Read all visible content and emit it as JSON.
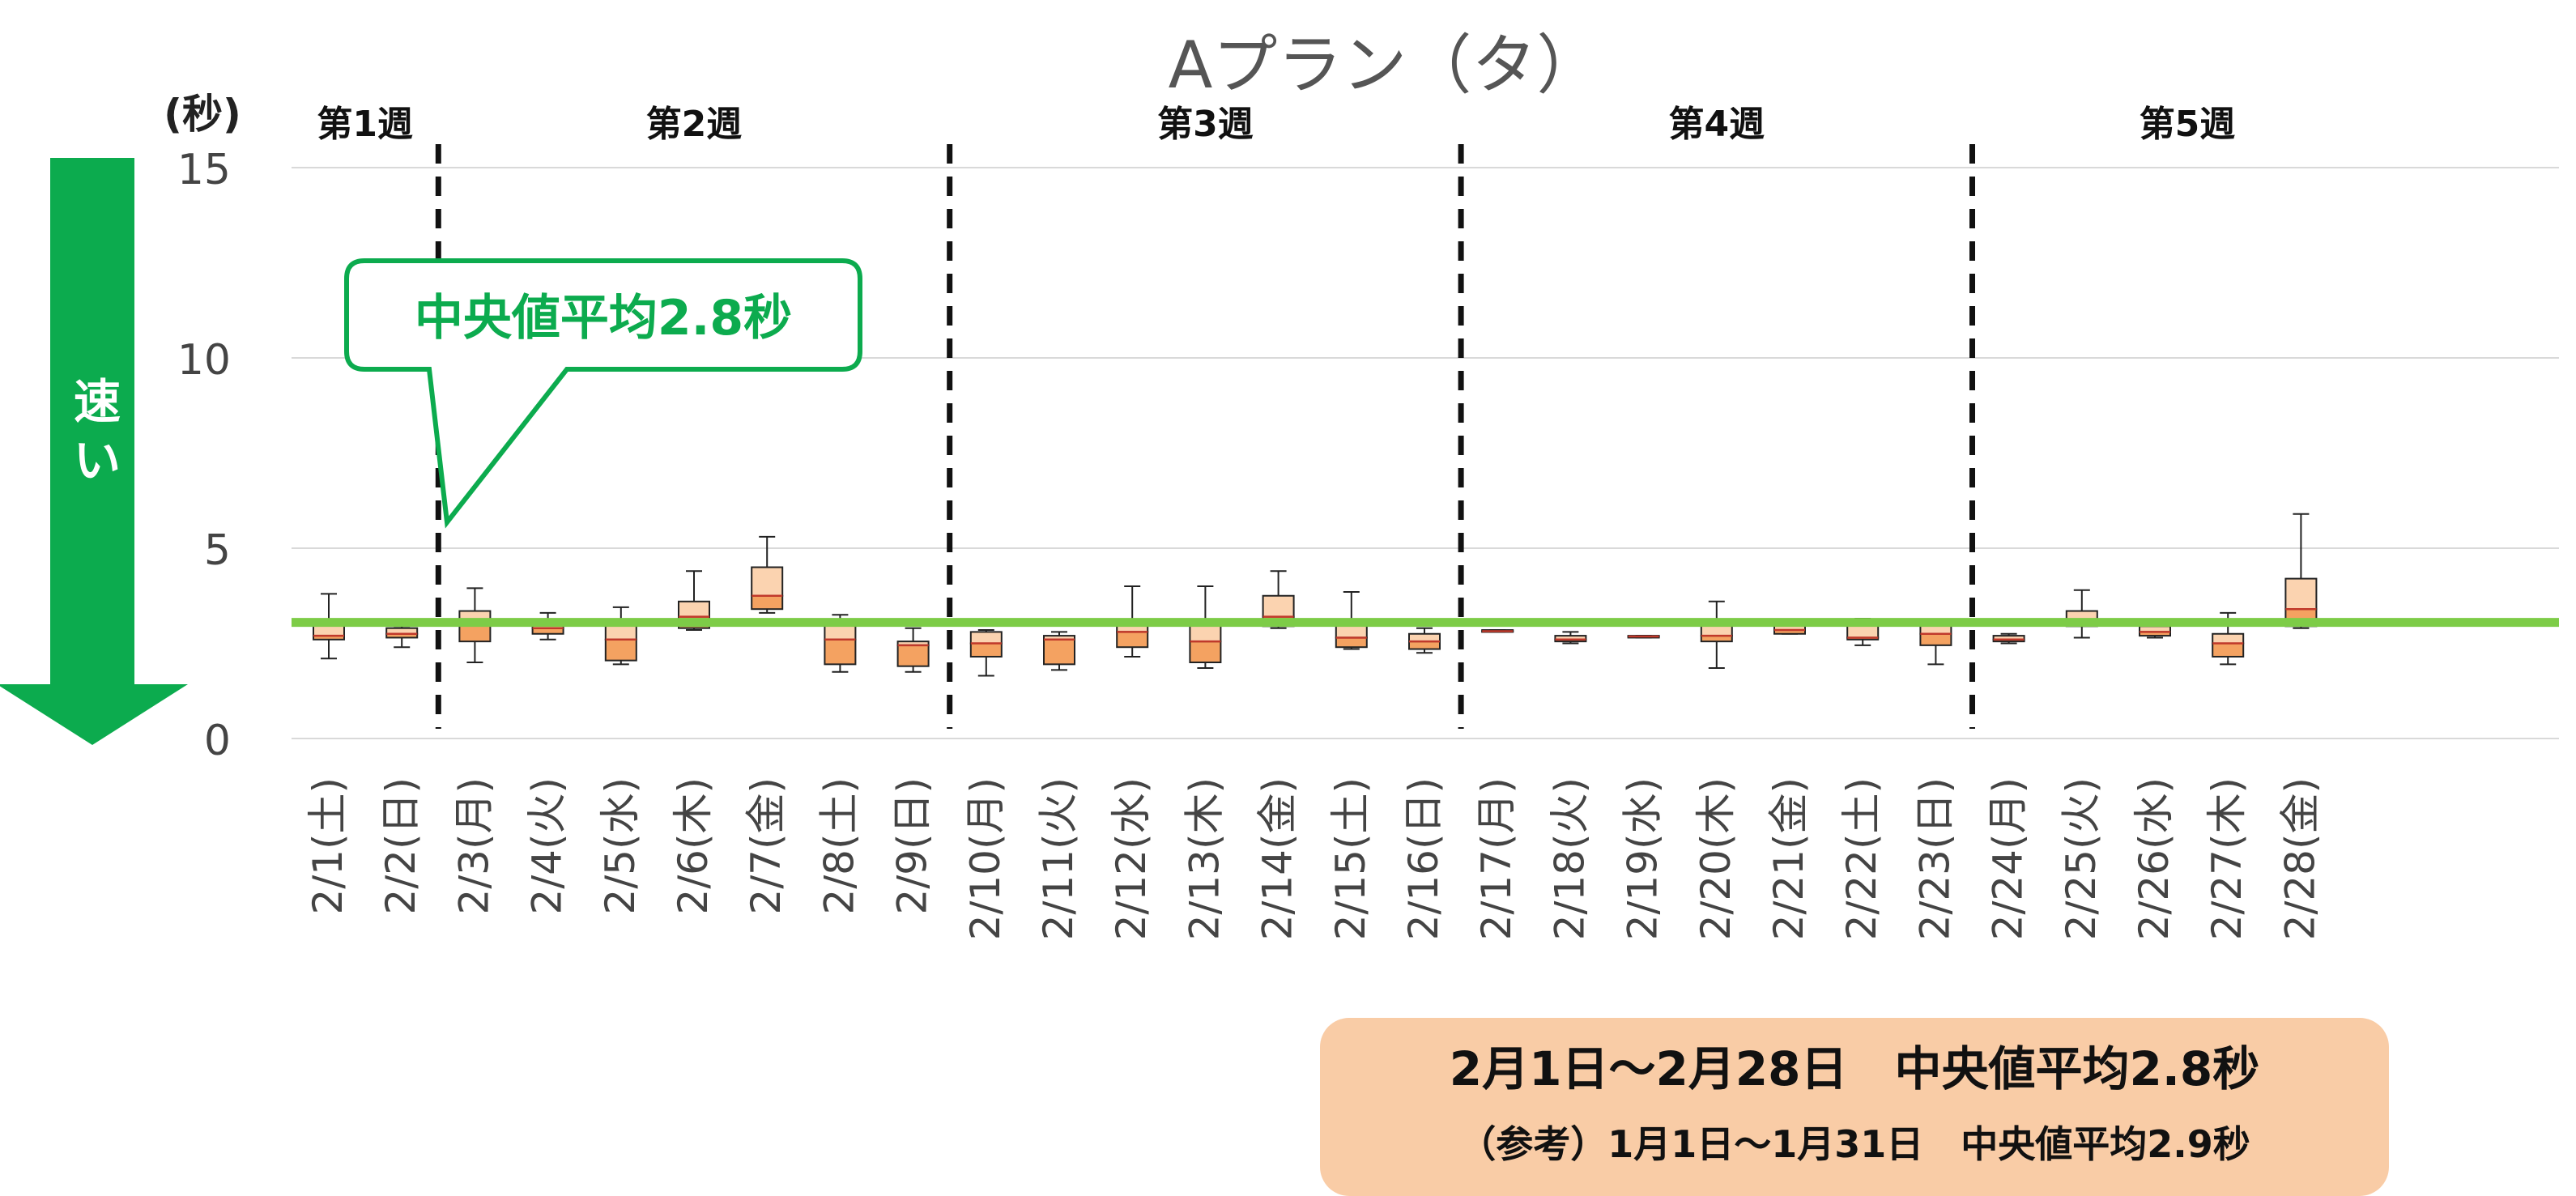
{
  "chart_data": {
    "type": "box",
    "title": "Aプラン（タ）",
    "unit_label": "(秒)",
    "ylim": [
      0,
      15
    ],
    "yticks": [
      0,
      5,
      10,
      15
    ],
    "grid": true,
    "speed_label": [
      "速",
      "い"
    ],
    "weeks": [
      {
        "label": "第1週",
        "start": 0,
        "end": 1
      },
      {
        "label": "第2週",
        "start": 2,
        "end": 8
      },
      {
        "label": "第3週",
        "start": 9,
        "end": 15
      },
      {
        "label": "第4週",
        "start": 16,
        "end": 22
      },
      {
        "label": "第5週",
        "start": 23,
        "end": 27
      }
    ],
    "categories": [
      "2/1(土)",
      "2/2(日)",
      "2/3(月)",
      "2/4(火)",
      "2/5(水)",
      "2/6(木)",
      "2/7(金)",
      "2/8(土)",
      "2/9(日)",
      "2/10(月)",
      "2/11(火)",
      "2/12(水)",
      "2/13(木)",
      "2/14(金)",
      "2/15(土)",
      "2/16(日)",
      "2/17(月)",
      "2/18(火)",
      "2/19(水)",
      "2/20(木)",
      "2/21(金)",
      "2/22(土)",
      "2/23(日)",
      "2/24(月)",
      "2/25(火)",
      "2/26(水)",
      "2/27(木)",
      "2/28(金)"
    ],
    "boxes": [
      {
        "min": 2.1,
        "q1": 2.6,
        "median": 2.7,
        "q3": 3.1,
        "max": 3.8
      },
      {
        "min": 2.4,
        "q1": 2.65,
        "median": 2.75,
        "q3": 2.9,
        "max": 2.95
      },
      {
        "min": 2.0,
        "q1": 2.55,
        "median": 3.1,
        "q3": 3.35,
        "max": 3.95
      },
      {
        "min": 2.6,
        "q1": 2.75,
        "median": 2.9,
        "q3": 3.1,
        "max": 3.3
      },
      {
        "min": 1.95,
        "q1": 2.05,
        "median": 2.6,
        "q3": 3.1,
        "max": 3.45
      },
      {
        "min": 2.85,
        "q1": 2.9,
        "median": 3.2,
        "q3": 3.6,
        "max": 4.4
      },
      {
        "min": 3.3,
        "q1": 3.4,
        "median": 3.75,
        "q3": 4.5,
        "max": 5.3
      },
      {
        "min": 1.75,
        "q1": 1.95,
        "median": 2.6,
        "q3": 3.05,
        "max": 3.25
      },
      {
        "min": 1.75,
        "q1": 1.9,
        "median": 2.45,
        "q3": 2.55,
        "max": 2.9
      },
      {
        "min": 1.65,
        "q1": 2.15,
        "median": 2.5,
        "q3": 2.8,
        "max": 2.85
      },
      {
        "min": 1.8,
        "q1": 1.95,
        "median": 2.6,
        "q3": 2.7,
        "max": 2.8
      },
      {
        "min": 2.15,
        "q1": 2.4,
        "median": 2.8,
        "q3": 3.1,
        "max": 4.0
      },
      {
        "min": 1.85,
        "q1": 2.0,
        "median": 2.55,
        "q3": 3.05,
        "max": 4.0
      },
      {
        "min": 2.9,
        "q1": 2.95,
        "median": 3.2,
        "q3": 3.75,
        "max": 4.4
      },
      {
        "min": 2.35,
        "q1": 2.4,
        "median": 2.65,
        "q3": 3.1,
        "max": 3.85
      },
      {
        "min": 2.25,
        "q1": 2.35,
        "median": 2.55,
        "q3": 2.75,
        "max": 2.9
      },
      {
        "min": 2.8,
        "q1": 2.8,
        "median": 2.82,
        "q3": 2.85,
        "max": 2.85
      },
      {
        "min": 2.5,
        "q1": 2.55,
        "median": 2.6,
        "q3": 2.7,
        "max": 2.8
      },
      {
        "min": 2.65,
        "q1": 2.65,
        "median": 2.68,
        "q3": 2.7,
        "max": 2.7
      },
      {
        "min": 1.85,
        "q1": 2.55,
        "median": 2.7,
        "q3": 3.05,
        "max": 3.6
      },
      {
        "min": 2.75,
        "q1": 2.75,
        "median": 2.85,
        "q3": 3.05,
        "max": 3.1
      },
      {
        "min": 2.45,
        "q1": 2.6,
        "median": 2.65,
        "q3": 3.05,
        "max": 3.15
      },
      {
        "min": 1.95,
        "q1": 2.45,
        "median": 2.75,
        "q3": 3.05,
        "max": 3.05
      },
      {
        "min": 2.5,
        "q1": 2.55,
        "median": 2.6,
        "q3": 2.7,
        "max": 2.75
      },
      {
        "min": 2.65,
        "q1": 2.95,
        "median": 3.05,
        "q3": 3.35,
        "max": 3.9
      },
      {
        "min": 2.65,
        "q1": 2.7,
        "median": 2.8,
        "q3": 2.95,
        "max": 2.95
      },
      {
        "min": 1.95,
        "q1": 2.15,
        "median": 2.5,
        "q3": 2.75,
        "max": 3.3
      },
      {
        "min": 2.9,
        "q1": 2.95,
        "median": 3.4,
        "q3": 4.2,
        "max": 5.9
      }
    ],
    "reference_line": 3.05,
    "colors": {
      "box_lower": "#f4a261",
      "box_upper": "#fbd3b0",
      "box_stroke": "#222222",
      "median": "#c0392b",
      "reference_line": "#7dcc47",
      "grid": "#d9d9d9",
      "accent_green": "#0cab4e",
      "summary_bg": "#f9cca6"
    }
  },
  "callout": {
    "text": "中央値平均2.8秒"
  },
  "summary": {
    "main": "2月1日～2月28日　中央値平均2.8秒",
    "reference": "（参考）1月1日～1月31日　中央値平均2.9秒"
  }
}
